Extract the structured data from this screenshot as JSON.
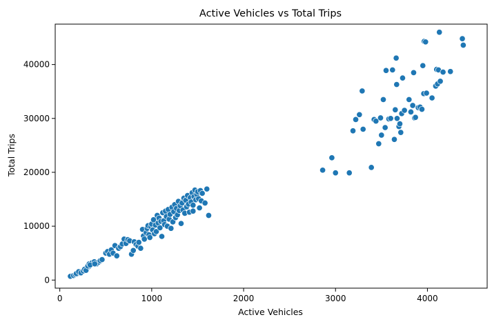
{
  "chart_data": {
    "type": "scatter",
    "title": "Active Vehicles vs Total Trips",
    "xlabel": "Active Vehicles",
    "ylabel": "Total Trips",
    "xlim": [
      -50,
      4650
    ],
    "ylim": [
      -1500,
      47500
    ],
    "xticks": [
      0,
      1000,
      2000,
      3000,
      4000
    ],
    "yticks": [
      0,
      10000,
      20000,
      30000,
      40000
    ],
    "grid": false,
    "color": "#1f77b4",
    "points": [
      [
        115,
        700
      ],
      [
        150,
        850
      ],
      [
        170,
        1000
      ],
      [
        185,
        1100
      ],
      [
        200,
        1250
      ],
      [
        210,
        1400
      ],
      [
        225,
        1500
      ],
      [
        240,
        1600
      ],
      [
        250,
        1750
      ],
      [
        260,
        1850
      ],
      [
        275,
        1950
      ],
      [
        290,
        2100
      ],
      [
        300,
        2300
      ],
      [
        315,
        2500
      ],
      [
        180,
        1200
      ],
      [
        205,
        1550
      ],
      [
        230,
        1350
      ],
      [
        255,
        1700
      ],
      [
        270,
        2000
      ],
      [
        285,
        1800
      ],
      [
        305,
        2600
      ],
      [
        320,
        3000
      ],
      [
        350,
        3200
      ],
      [
        375,
        3400
      ],
      [
        400,
        3000
      ],
      [
        420,
        3300
      ],
      [
        440,
        3600
      ],
      [
        460,
        3800
      ],
      [
        330,
        2800
      ],
      [
        380,
        3000
      ],
      [
        500,
        5000
      ],
      [
        520,
        5300
      ],
      [
        540,
        4800
      ],
      [
        560,
        5600
      ],
      [
        580,
        5000
      ],
      [
        600,
        6400
      ],
      [
        620,
        4500
      ],
      [
        640,
        5900
      ],
      [
        660,
        6200
      ],
      [
        680,
        6700
      ],
      [
        700,
        7600
      ],
      [
        720,
        6800
      ],
      [
        740,
        7500
      ],
      [
        760,
        7300
      ],
      [
        780,
        4800
      ],
      [
        800,
        5500
      ],
      [
        810,
        7100
      ],
      [
        830,
        6600
      ],
      [
        850,
        6300
      ],
      [
        860,
        7000
      ],
      [
        880,
        5900
      ],
      [
        900,
        9400
      ],
      [
        910,
        8200
      ],
      [
        920,
        7600
      ],
      [
        940,
        8800
      ],
      [
        950,
        9600
      ],
      [
        960,
        10100
      ],
      [
        970,
        8400
      ],
      [
        980,
        7900
      ],
      [
        990,
        9900
      ],
      [
        1000,
        10400
      ],
      [
        1010,
        9300
      ],
      [
        1020,
        11200
      ],
      [
        1030,
        8600
      ],
      [
        1040,
        10200
      ],
      [
        1050,
        9000
      ],
      [
        1060,
        12000
      ],
      [
        1070,
        10600
      ],
      [
        1080,
        11500
      ],
      [
        1090,
        9700
      ],
      [
        1100,
        10900
      ],
      [
        1110,
        8100
      ],
      [
        1120,
        12500
      ],
      [
        1130,
        11000
      ],
      [
        1140,
        10300
      ],
      [
        1150,
        12800
      ],
      [
        1160,
        11800
      ],
      [
        1170,
        10000
      ],
      [
        1180,
        13100
      ],
      [
        1190,
        11300
      ],
      [
        1200,
        12200
      ],
      [
        1210,
        9600
      ],
      [
        1220,
        13500
      ],
      [
        1230,
        10800
      ],
      [
        1240,
        12700
      ],
      [
        1250,
        14000
      ],
      [
        1260,
        11600
      ],
      [
        1270,
        13300
      ],
      [
        1280,
        12100
      ],
      [
        1290,
        14600
      ],
      [
        1300,
        12900
      ],
      [
        1310,
        13800
      ],
      [
        1320,
        10500
      ],
      [
        1330,
        14300
      ],
      [
        1340,
        13000
      ],
      [
        1350,
        15200
      ],
      [
        1360,
        12400
      ],
      [
        1370,
        14800
      ],
      [
        1380,
        13600
      ],
      [
        1390,
        15700
      ],
      [
        1400,
        14100
      ],
      [
        1410,
        12600
      ],
      [
        1420,
        15300
      ],
      [
        1430,
        14500
      ],
      [
        1440,
        16200
      ],
      [
        1450,
        13900
      ],
      [
        1460,
        15500
      ],
      [
        1470,
        16700
      ],
      [
        1480,
        14900
      ],
      [
        1490,
        15900
      ],
      [
        1500,
        16400
      ],
      [
        1510,
        15100
      ],
      [
        1520,
        13400
      ],
      [
        1530,
        16600
      ],
      [
        1540,
        14700
      ],
      [
        1550,
        16100
      ],
      [
        1600,
        16900
      ],
      [
        1620,
        12000
      ],
      [
        1580,
        14300
      ],
      [
        1450,
        12800
      ],
      [
        2860,
        20400
      ],
      [
        2960,
        22700
      ],
      [
        3000,
        19900
      ],
      [
        3150,
        19900
      ],
      [
        3390,
        20900
      ],
      [
        3190,
        27700
      ],
      [
        3220,
        29800
      ],
      [
        3260,
        30700
      ],
      [
        3290,
        35100
      ],
      [
        3300,
        28000
      ],
      [
        3420,
        29800
      ],
      [
        3440,
        29500
      ],
      [
        3470,
        25300
      ],
      [
        3490,
        30100
      ],
      [
        3500,
        26900
      ],
      [
        3520,
        33500
      ],
      [
        3540,
        28300
      ],
      [
        3550,
        38900
      ],
      [
        3580,
        29900
      ],
      [
        3600,
        30000
      ],
      [
        3620,
        39000
      ],
      [
        3640,
        26100
      ],
      [
        3650,
        31600
      ],
      [
        3660,
        41200
      ],
      [
        3665,
        36300
      ],
      [
        3670,
        30000
      ],
      [
        3690,
        28500
      ],
      [
        3700,
        29000
      ],
      [
        3710,
        27400
      ],
      [
        3720,
        30900
      ],
      [
        3730,
        37500
      ],
      [
        3750,
        31500
      ],
      [
        3800,
        33500
      ],
      [
        3820,
        31200
      ],
      [
        3840,
        32400
      ],
      [
        3850,
        38500
      ],
      [
        3860,
        30100
      ],
      [
        3870,
        30200
      ],
      [
        3900,
        32000
      ],
      [
        3920,
        32100
      ],
      [
        3940,
        31700
      ],
      [
        3950,
        39800
      ],
      [
        3960,
        34600
      ],
      [
        3965,
        44300
      ],
      [
        3980,
        44200
      ],
      [
        3990,
        34700
      ],
      [
        4050,
        33800
      ],
      [
        4090,
        36000
      ],
      [
        4100,
        39100
      ],
      [
        4110,
        36400
      ],
      [
        4120,
        39000
      ],
      [
        4130,
        46000
      ],
      [
        4140,
        36900
      ],
      [
        4170,
        38600
      ],
      [
        4250,
        38700
      ],
      [
        4380,
        44800
      ],
      [
        4390,
        43600
      ]
    ]
  }
}
